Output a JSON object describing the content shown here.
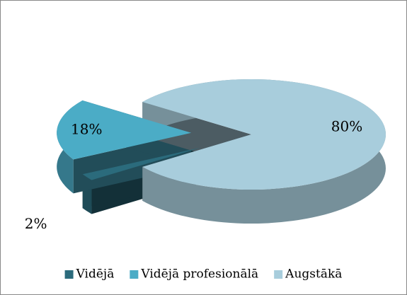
{
  "chart_data": {
    "type": "pie",
    "categories": [
      "Vidējā",
      "Vidējā profesionālā",
      "Augstākā"
    ],
    "values": [
      2,
      18,
      80
    ],
    "value_labels": [
      "2%",
      "18%",
      "80%"
    ],
    "colors": [
      "#2b6b7c",
      "#4bacc6",
      "#a8cddc"
    ],
    "legend": "bottom"
  }
}
